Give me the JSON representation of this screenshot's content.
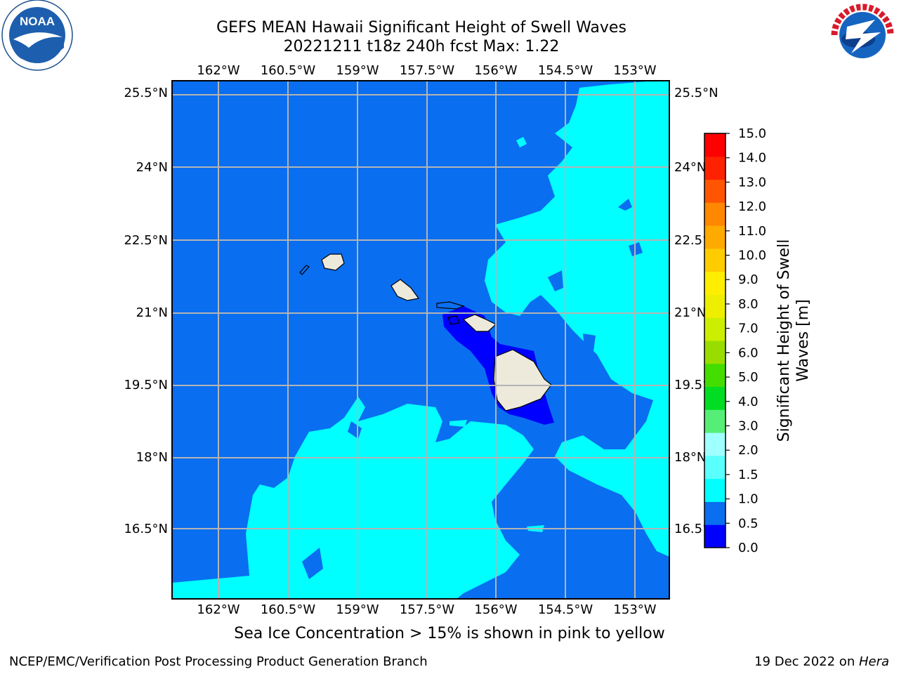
{
  "title": {
    "line1": "GEFS MEAN Hawaii Significant Height of Swell Waves",
    "line2": "20221211 t18z 240h fcst   Max: 1.22"
  },
  "map": {
    "lon_labels": [
      "162°W",
      "160.5°W",
      "159°W",
      "157.5°W",
      "156°W",
      "154.5°W",
      "153°W"
    ],
    "lat_labels": [
      "25.5°N",
      "24°N",
      "22.5°N",
      "21°N",
      "19.5°N",
      "18°N",
      "16.5°N"
    ],
    "islands": [
      "Niihau",
      "Kauai",
      "Oahu",
      "Molokai",
      "Maui",
      "Hawaii"
    ],
    "colors": {
      "ocean_0_5_1_0": "#0a6ef0",
      "ocean_1_0_1_5": "#00ffff",
      "ocean_0_0_0_5": "#0000ff",
      "land": "#eeeadb",
      "grid": "#b4b4b4"
    }
  },
  "colorbar": {
    "label": "Significant Height of Swell Waves [m]",
    "label_line1": "Significant Height of Swell",
    "label_line2": "Waves [m]",
    "ticks": [
      "15.0",
      "14.0",
      "13.0",
      "12.0",
      "11.0",
      "10.0",
      "9.0",
      "8.0",
      "7.0",
      "6.0",
      "5.0",
      "4.0",
      "3.0",
      "2.0",
      "1.5",
      "1.0",
      "0.5",
      "0.0"
    ],
    "levels": [
      0.0,
      0.5,
      1.0,
      1.5,
      2.0,
      3.0,
      4.0,
      5.0,
      6.0,
      7.0,
      8.0,
      9.0,
      10.0,
      11.0,
      12.0,
      13.0,
      14.0,
      15.0
    ],
    "colors": [
      "#0000ff",
      "#0a6ef0",
      "#00ffff",
      "#5affff",
      "#a0ffff",
      "#55ee77",
      "#00dd22",
      "#44dd00",
      "#99dd00",
      "#ccee00",
      "#eeee00",
      "#ffee00",
      "#ffcc00",
      "#ffaa00",
      "#ff8800",
      "#ff5500",
      "#ff2200",
      "#ff0000"
    ]
  },
  "note": "Sea Ice Concentration > 15% is shown in pink to yellow",
  "footer": {
    "left": "NCEP/EMC/Verification Post Processing Product Generation Branch",
    "right_date": "19 Dec 2022 on ",
    "right_host": "Hera"
  },
  "logos": {
    "left": "NOAA",
    "right": "NATIONAL WEATHER SERVICE"
  }
}
